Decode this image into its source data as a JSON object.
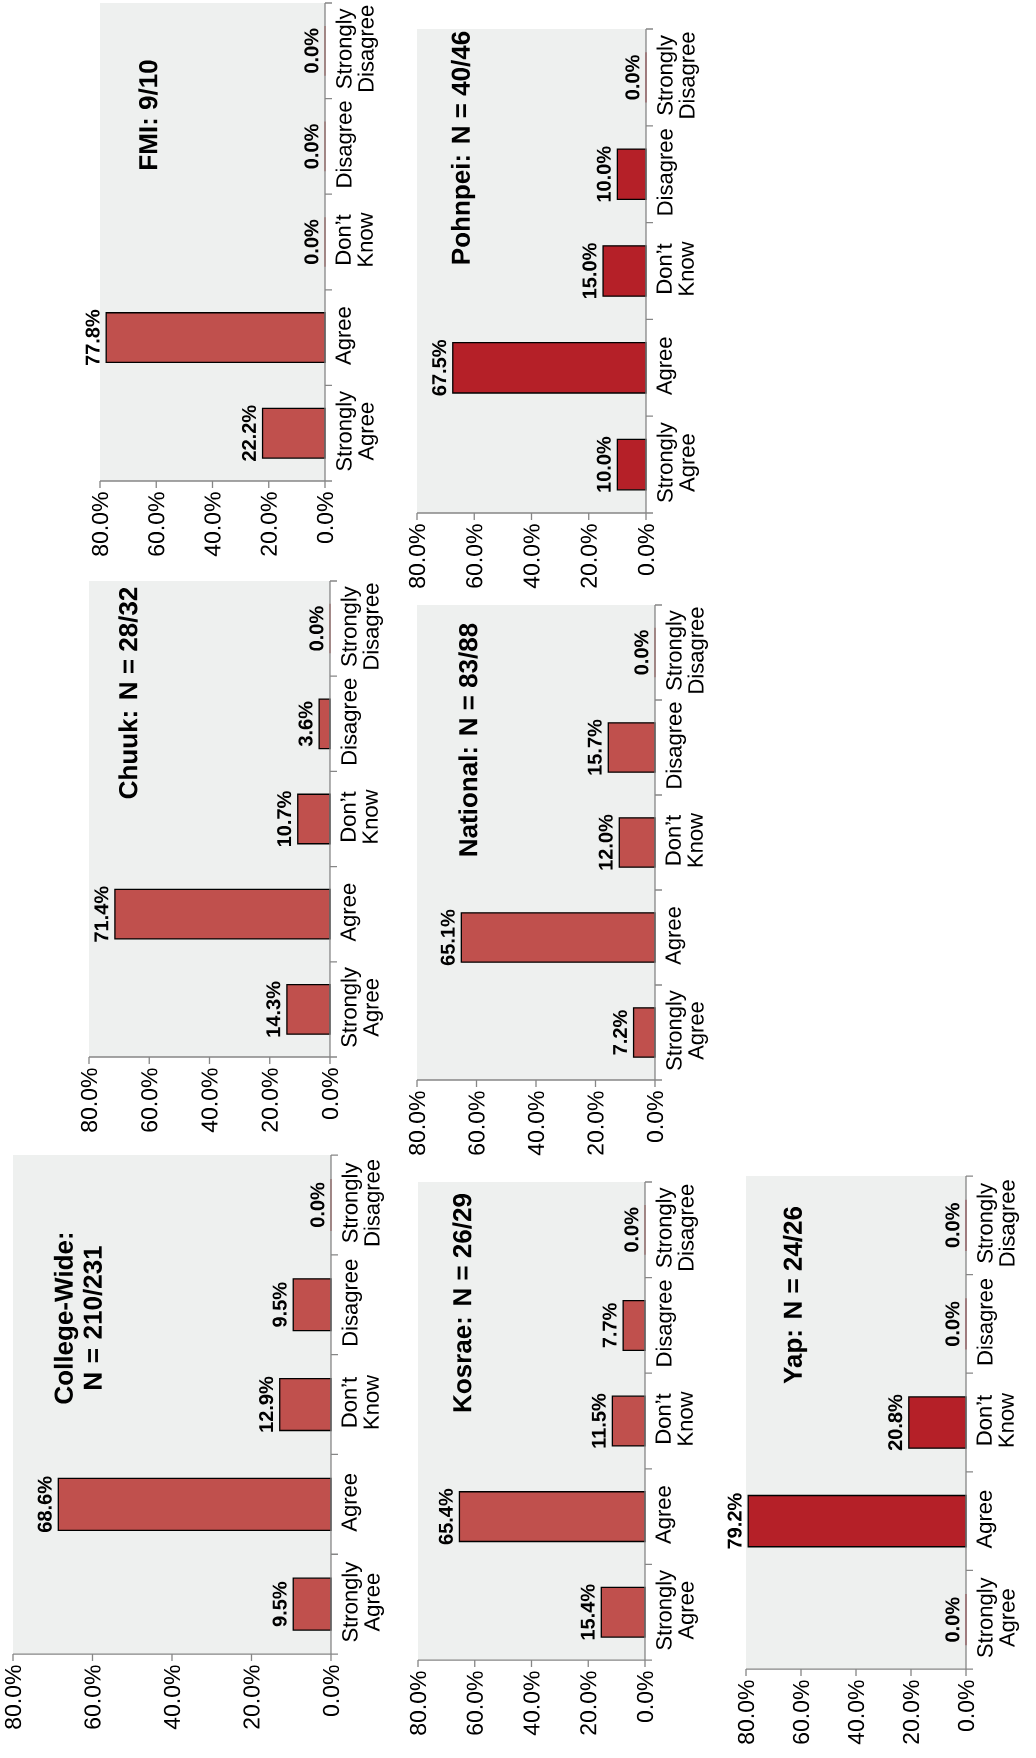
{
  "chart_data": [
    {
      "type": "bar",
      "orientation": "horizontal",
      "title": "College-Wide: N = 210/231",
      "categories": [
        "Strongly Disagree",
        "Disagree",
        "Don’t Know",
        "Agree",
        "Strongly Agree"
      ],
      "values": [
        0.0,
        9.5,
        12.9,
        68.6,
        9.5
      ],
      "value_labels": [
        "0.0%",
        "9.5%",
        "12.9%",
        "68.6%",
        "9.5%"
      ],
      "color": "#c0504d",
      "xlim": [
        80,
        0
      ],
      "xticks": [
        {
          "value": 80,
          "label": "80.0%"
        },
        {
          "value": 60,
          "label": "60.0%"
        },
        {
          "value": 40,
          "label": "40.0%"
        },
        {
          "value": 20,
          "label": "20.0%"
        },
        {
          "value": 0,
          "label": "0.0%"
        }
      ]
    },
    {
      "type": "bar",
      "orientation": "horizontal",
      "title": "Chuuk: N = 28/32",
      "categories": [
        "Strongly Disagree",
        "Disagree",
        "Don’t Know",
        "Agree",
        "Strongly Agree"
      ],
      "values": [
        0.0,
        3.6,
        10.7,
        71.4,
        14.3
      ],
      "value_labels": [
        "0.0%",
        "3.6%",
        "10.7%",
        "71.4%",
        "14.3%"
      ],
      "color": "#c0504d",
      "xlim": [
        80,
        0
      ],
      "xticks": [
        {
          "value": 80,
          "label": "80.0%"
        },
        {
          "value": 60,
          "label": "60.0%"
        },
        {
          "value": 40,
          "label": "40.0%"
        },
        {
          "value": 20,
          "label": "20.0%"
        },
        {
          "value": 0,
          "label": "0.0%"
        }
      ]
    },
    {
      "type": "bar",
      "orientation": "horizontal",
      "title": "FMI: 9/10",
      "categories": [
        "Strongly Disagree",
        "Disagree",
        "Don’t Know",
        "Agree",
        "Strongly Agree"
      ],
      "values": [
        0.0,
        0.0,
        0.0,
        77.8,
        22.2
      ],
      "value_labels": [
        "0.0%",
        "0.0%",
        "0.0%",
        "77.8%",
        "22.2%"
      ],
      "color": "#c0504d",
      "xlim": [
        80,
        0
      ],
      "xticks": [
        {
          "value": 80,
          "label": "80.0%"
        },
        {
          "value": 60,
          "label": "60.0%"
        },
        {
          "value": 40,
          "label": "40.0%"
        },
        {
          "value": 20,
          "label": "20.0%"
        },
        {
          "value": 0,
          "label": "0.0%"
        }
      ]
    },
    {
      "type": "bar",
      "orientation": "horizontal",
      "title": "Kosrae: N = 26/29",
      "categories": [
        "Strongly Disagree",
        "Disagree",
        "Don’t Know",
        "Agree",
        "Strongly Agree"
      ],
      "values": [
        0.0,
        7.7,
        11.5,
        65.4,
        15.4
      ],
      "value_labels": [
        "0.0%",
        "7.7%",
        "11.5%",
        "65.4%",
        "15.4%"
      ],
      "color": "#c0504d",
      "xlim": [
        80,
        0
      ],
      "xticks": [
        {
          "value": 80,
          "label": "80.0%"
        },
        {
          "value": 60,
          "label": "60.0%"
        },
        {
          "value": 40,
          "label": "40.0%"
        },
        {
          "value": 20,
          "label": "20.0%"
        },
        {
          "value": 0,
          "label": "0.0%"
        }
      ]
    },
    {
      "type": "bar",
      "orientation": "horizontal",
      "title": "National: N = 83/88",
      "categories": [
        "Strongly Disagree",
        "Disagree",
        "Don’t Know",
        "Agree",
        "Strongly Agree"
      ],
      "values": [
        0.0,
        15.7,
        12.0,
        65.1,
        7.2
      ],
      "value_labels": [
        "0.0%",
        "15.7%",
        "12.0%",
        "65.1%",
        "7.2%"
      ],
      "color": "#c0504d",
      "xlim": [
        80,
        0
      ],
      "xticks": [
        {
          "value": 80,
          "label": "80.0%"
        },
        {
          "value": 60,
          "label": "60.0%"
        },
        {
          "value": 40,
          "label": "40.0%"
        },
        {
          "value": 20,
          "label": "20.0%"
        },
        {
          "value": 0,
          "label": "0.0%"
        }
      ]
    },
    {
      "type": "bar",
      "orientation": "horizontal",
      "title": "Pohnpei: N = 40/46",
      "categories": [
        "Strongly Disagree",
        "Disagree",
        "Don’t Know",
        "Agree",
        "Strongly Agree"
      ],
      "values": [
        0.0,
        10.0,
        15.0,
        67.5,
        10.0
      ],
      "value_labels": [
        "0.0%",
        "10.0%",
        "15.0%",
        "67.5%",
        "10.0%"
      ],
      "color": "#b52028",
      "xlim": [
        80,
        0
      ],
      "xticks": [
        {
          "value": 80,
          "label": "80.0%"
        },
        {
          "value": 60,
          "label": "60.0%"
        },
        {
          "value": 40,
          "label": "40.0%"
        },
        {
          "value": 20,
          "label": "20.0%"
        },
        {
          "value": 0,
          "label": "0.0%"
        }
      ]
    },
    {
      "type": "bar",
      "orientation": "horizontal",
      "title": "Yap: N = 24/26",
      "categories": [
        "Strongly Disagree",
        "Disagree",
        "Don’t Know",
        "Agree",
        "Strongly Agree"
      ],
      "values": [
        0.0,
        0.0,
        20.8,
        79.2,
        0.0
      ],
      "value_labels": [
        "0.0%",
        "0.0%",
        "20.8%",
        "79.2%",
        "0.0%"
      ],
      "color": "#b52028",
      "xlim": [
        80,
        0
      ],
      "xticks": [
        {
          "value": 80,
          "label": "80.0%"
        },
        {
          "value": 60,
          "label": "60.0%"
        },
        {
          "value": 40,
          "label": "40.0%"
        },
        {
          "value": 20,
          "label": "20.0%"
        },
        {
          "value": 0,
          "label": "0.0%"
        }
      ]
    }
  ]
}
